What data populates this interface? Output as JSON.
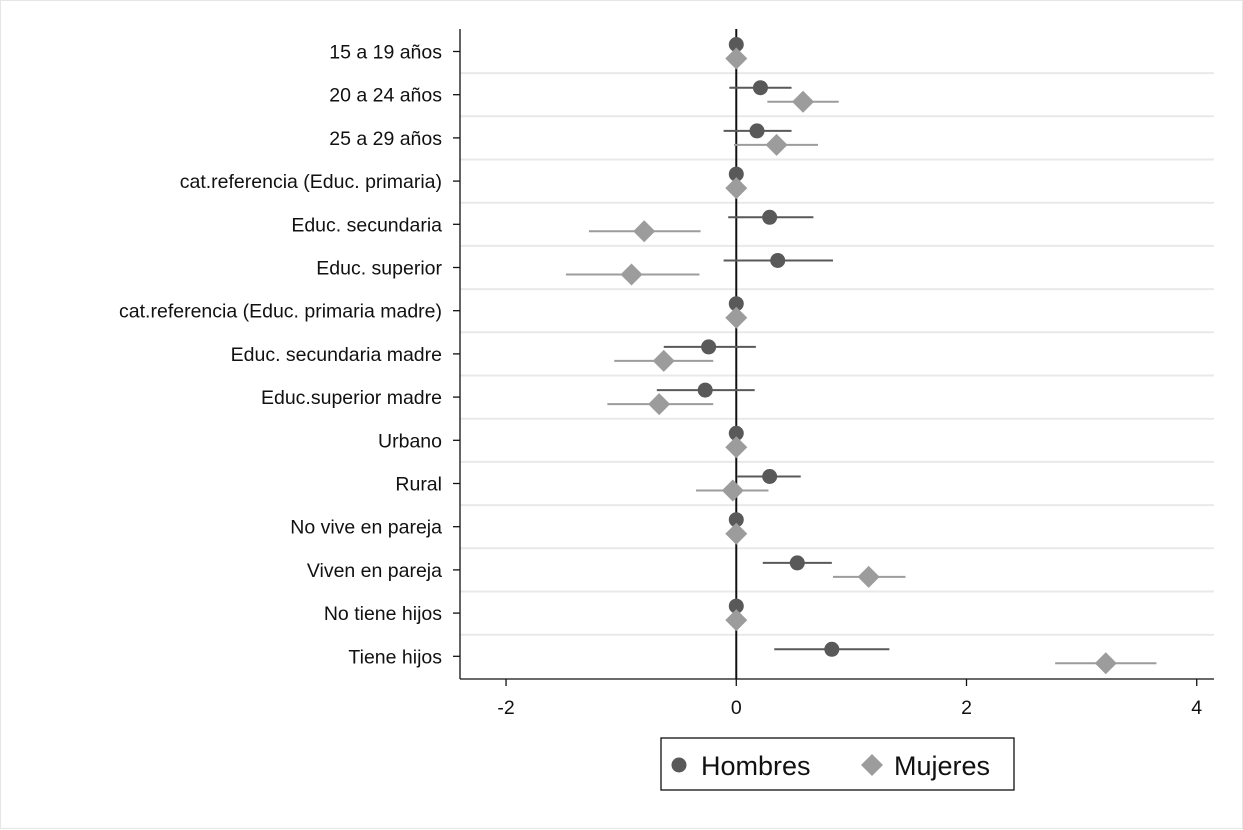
{
  "chart_data": {
    "type": "scatter",
    "subtype": "coefficient-plot",
    "title": "",
    "xlabel": "",
    "ylabel": "",
    "xlim": [
      -2.4,
      4.15
    ],
    "xticks": [
      -2,
      0,
      2,
      4
    ],
    "xtick_labels": [
      "-2",
      "0",
      "2",
      "4"
    ],
    "reference_line": 0,
    "grid": "horizontal",
    "legend_position": "bottom",
    "categories": [
      "15 a 19 años",
      "20 a 24 años",
      "25 a 29 años",
      "cat.referencia (Educ. primaria)",
      "Educ. secundaria",
      "Educ. superior",
      "cat.referencia (Educ. primaria madre)",
      "Educ. secundaria madre",
      "Educ.superior madre",
      "Urbano",
      "Rural",
      "No vive en pareja",
      "Viven en pareja",
      "No tiene hijos",
      "Tiene hijos"
    ],
    "series": [
      {
        "name": "Hombres",
        "marker": "circle",
        "color": "#595959",
        "values": [
          0,
          0.21,
          0.18,
          0,
          0.29,
          0.36,
          0,
          -0.24,
          -0.27,
          0,
          0.29,
          0,
          0.53,
          0,
          0.83
        ],
        "ci_low": [
          0,
          -0.06,
          -0.11,
          0,
          -0.07,
          -0.11,
          0,
          -0.63,
          -0.69,
          0,
          0.01,
          0,
          0.23,
          0,
          0.33
        ],
        "ci_high": [
          0,
          0.48,
          0.48,
          0,
          0.67,
          0.84,
          0,
          0.17,
          0.16,
          0,
          0.56,
          0,
          0.83,
          0,
          1.33
        ]
      },
      {
        "name": "Mujeres",
        "marker": "diamond",
        "color": "#9c9c9c",
        "values": [
          0,
          0.58,
          0.35,
          0,
          -0.8,
          -0.91,
          0,
          -0.63,
          -0.67,
          0,
          -0.03,
          0,
          1.15,
          0,
          3.21
        ],
        "ci_low": [
          0,
          0.27,
          -0.02,
          0,
          -1.28,
          -1.48,
          0,
          -1.06,
          -1.12,
          0,
          -0.35,
          0,
          0.84,
          0,
          2.77
        ],
        "ci_high": [
          0,
          0.89,
          0.71,
          0,
          -0.31,
          -0.32,
          0,
          -0.2,
          -0.2,
          0,
          0.28,
          0,
          1.47,
          0,
          3.65
        ]
      }
    ],
    "legend": [
      "Hombres",
      "Mujeres"
    ]
  }
}
